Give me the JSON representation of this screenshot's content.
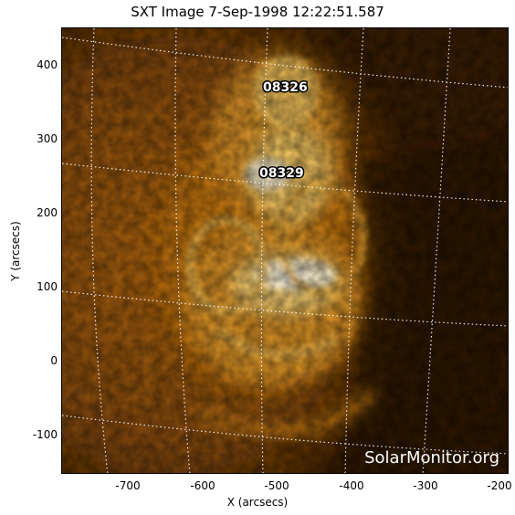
{
  "title": "SXT Image  7-Sep-1998 12:22:51.587",
  "x_axis": {
    "label": "X (arcsecs)",
    "ticks": [
      "-700",
      "-600",
      "-500",
      "-400",
      "-300",
      "-200"
    ],
    "range": [
      -800,
      -200
    ]
  },
  "y_axis": {
    "label": "Y (arcsecs)",
    "ticks": [
      "400",
      "300",
      "200",
      "100",
      "0",
      "-100"
    ],
    "range": [
      -150,
      450
    ]
  },
  "regions": [
    {
      "id": "08326",
      "label": "08326"
    },
    {
      "id": "08329",
      "label": "08329"
    }
  ],
  "watermark": "SolarMonitor.org",
  "colors": {
    "background": "#ffffff",
    "image_dark": "#2a1400",
    "image_mid": "#c77a10",
    "image_bright": "#fff6dd",
    "grid": "#ffffff"
  }
}
